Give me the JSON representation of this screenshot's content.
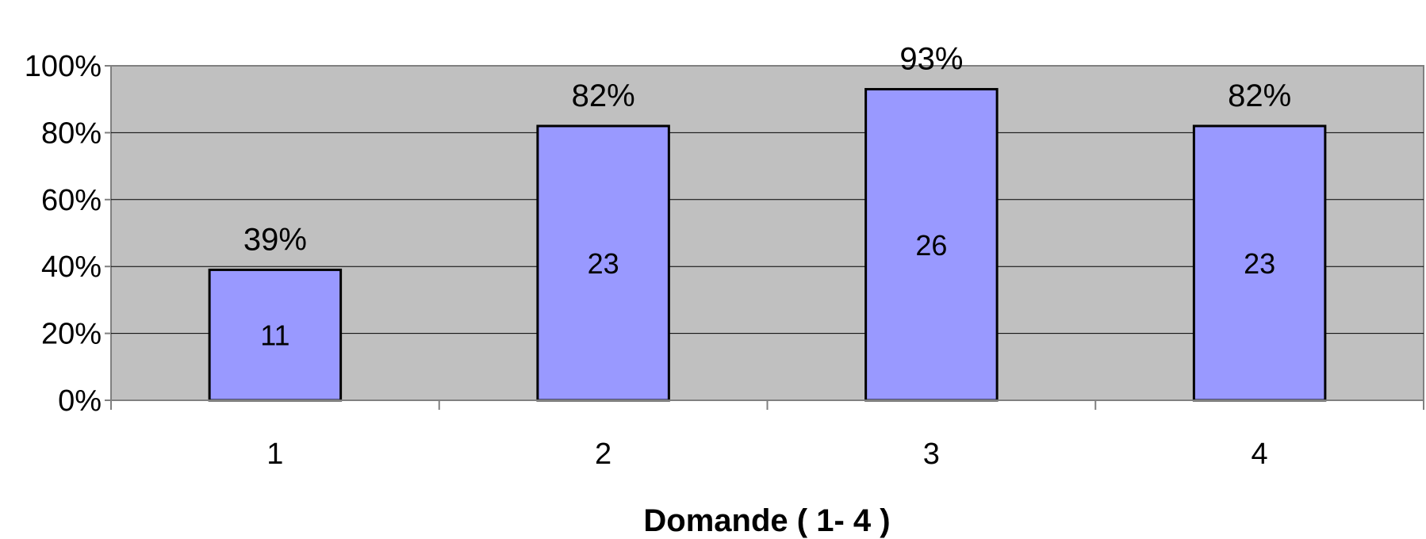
{
  "chart_data": {
    "type": "bar",
    "title": "",
    "xlabel": "Domande ( 1- 4 )",
    "ylabel": "",
    "categories": [
      "1",
      "2",
      "3",
      "4"
    ],
    "values": [
      39,
      82,
      93,
      82
    ],
    "value_labels": [
      "39%",
      "82%",
      "93%",
      "82%"
    ],
    "counts": [
      "11",
      "23",
      "26",
      "23"
    ],
    "y_ticks": [
      "0%",
      "20%",
      "40%",
      "60%",
      "80%",
      "100%"
    ],
    "ylim": [
      0,
      100
    ],
    "grid": true,
    "legend": "none",
    "colors": {
      "bar_fill": "#9999FF",
      "bar_stroke": "#000000",
      "plot_background": "#C0C0C0",
      "grid": "#000000",
      "axis": "#808080"
    }
  }
}
